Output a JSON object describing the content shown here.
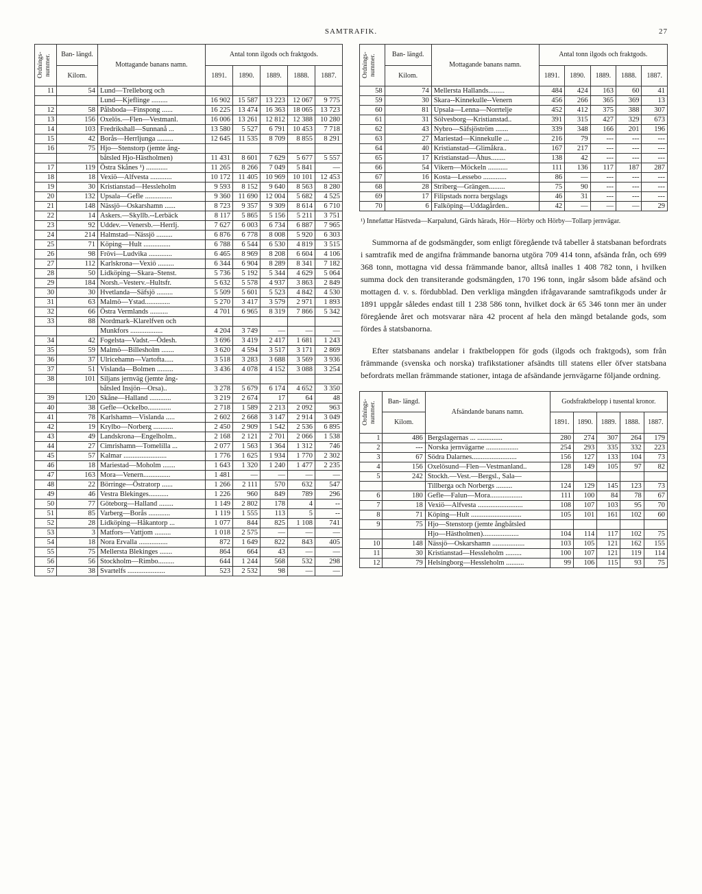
{
  "header": {
    "title": "SAMTRAFIK.",
    "page": "27"
  },
  "table_a": {
    "head": {
      "ord": "Ordnings-\nnummer.",
      "ban": "Ban-\nlängd.",
      "kilom": "Kilom.",
      "namn": "Mottagande banans namn.",
      "antal": "Antal tonn ilgods och fraktgods.",
      "years": [
        "1891.",
        "1890.",
        "1889.",
        "1888.",
        "1887."
      ]
    },
    "rows": [
      [
        "11",
        "54",
        "Lund—Trelleborg och",
        "",
        "",
        "",
        "",
        ""
      ],
      [
        "",
        "",
        "Lund—Kjeflinge .........",
        "16 902",
        "15 587",
        "13 223",
        "12 067",
        "9 775"
      ],
      [
        "12",
        "58",
        "Pålsboda—Finspong ......",
        "16 225",
        "13 474",
        "16 363",
        "18 065",
        "13 723"
      ],
      [
        "13",
        "156",
        "Oxelös.—Flen—Vestmanl.",
        "16 006",
        "13 261",
        "12 812",
        "12 388",
        "10 280"
      ],
      [
        "14",
        "103",
        "Fredrikshall—Sunnanå ...",
        "13 580",
        "5 527",
        "6 791",
        "10 453",
        "7 718"
      ],
      [
        "15",
        "42",
        "Borås—Herrljunga .........",
        "12 645",
        "11 535",
        "8 709",
        "8 855",
        "8 291"
      ],
      [
        "16",
        "75",
        "Hjo—Stenstorp (jemte ång-",
        "",
        "",
        "",
        "",
        ""
      ],
      [
        "",
        "",
        "båtsled Hjo-Hästholmen)",
        "11 431",
        "8 601",
        "7 629",
        "5 677",
        "5 557"
      ],
      [
        "17",
        "119",
        "Östra Skånes ¹) ............",
        "11 265",
        "8 266",
        "7 049",
        "5 841",
        "—"
      ],
      [
        "18",
        "18",
        "Vexiö—Alfvesta ............",
        "10 172",
        "11 405",
        "10 969",
        "10 101",
        "12 453"
      ],
      [
        "19",
        "30",
        "Kristianstad—Hessleholm",
        "9 593",
        "8 152",
        "9 640",
        "8 563",
        "8 280"
      ],
      [
        "20",
        "132",
        "Upsala—Gefle ...............",
        "9 360",
        "11 690",
        "12 004",
        "5 682",
        "4 525"
      ],
      [
        "21",
        "148",
        "Nässjö—Oskarshamn ......",
        "8 723",
        "9 357",
        "9 309",
        "8 614",
        "6 710"
      ],
      [
        "22",
        "14",
        "Askers.—Skyllb.--Lerbäck",
        "8 117",
        "5 865",
        "5 156",
        "5 211",
        "3 751"
      ],
      [
        "23",
        "92",
        "Uddev.—Venersb.—Herrlj.",
        "7 627",
        "6 003",
        "6 734",
        "6 887",
        "7 965"
      ],
      [
        "24",
        "214",
        "Halmstad—Nässjö .........",
        "6 876",
        "6 778",
        "8 008",
        "5 920",
        "6 303"
      ],
      [
        "25",
        "71",
        "Köping—Hult ...............",
        "6 788",
        "6 544",
        "6 530",
        "4 819",
        "3 515"
      ],
      [
        "26",
        "98",
        "Frövi—Ludvika .............",
        "6 465",
        "8 969",
        "8 208",
        "6 604",
        "4 106"
      ],
      [
        "27",
        "112",
        "Karlskrona—Vexiö .........",
        "6 344",
        "6 904",
        "8 289",
        "8 341",
        "7 182"
      ],
      [
        "28",
        "50",
        "Lidköping—Skara–Stenst.",
        "5 736",
        "5 192",
        "5 344",
        "4 629",
        "5 064"
      ],
      [
        "29",
        "184",
        "Norsh.–Vesterv.–Hultsfr.",
        "5 632",
        "5 578",
        "4 937",
        "3 863",
        "2 849"
      ],
      [
        "30",
        "30",
        "Hvetlanda—Säfsjö .........",
        "5 509",
        "5 601",
        "5 523",
        "4 842",
        "4 530"
      ],
      [
        "31",
        "63",
        "Malmö—Ystad..............",
        "5 270",
        "3 417",
        "3 579",
        "2 971",
        "1 893"
      ],
      [
        "32",
        "66",
        "Östra Vermlands ..........",
        "4 701",
        "6 965",
        "8 319",
        "7 866",
        "5 342"
      ],
      [
        "33",
        "88",
        "Nordmark–Klarelfven och",
        "",
        "",
        "",
        "",
        ""
      ],
      [
        "",
        "",
        "Munkfors ..................",
        "4 204",
        "3 749",
        "—",
        "—",
        "—"
      ],
      [
        "34",
        "42",
        "Fogelsta—Vadst.—Ödesh.",
        "3 696",
        "3 419",
        "2 417",
        "1 681",
        "1 243"
      ],
      [
        "35",
        "59",
        "Malmö—Billesholm .......",
        "3 620",
        "4 594",
        "3 517",
        "3 171",
        "2 869"
      ],
      [
        "36",
        "37",
        "Ulricehamn—Vartofta.....",
        "3 518",
        "3 283",
        "3 688",
        "3 569",
        "3 936"
      ],
      [
        "37",
        "51",
        "Vislanda—Bolmen .........",
        "3 436",
        "4 078",
        "4 152",
        "3 088",
        "3 254"
      ],
      [
        "38",
        "101",
        "Siljans jernväg (jemte ång-",
        "",
        "",
        "",
        "",
        ""
      ],
      [
        "",
        "",
        "båtsled Insjön—Orsa)..",
        "3 278",
        "5 679",
        "6 174",
        "4 652",
        "3 350"
      ],
      [
        "39",
        "120",
        "Skåne—Halland ............",
        "3 219",
        "2 674",
        "17",
        "64",
        "48"
      ],
      [
        "40",
        "38",
        "Gefle—Ockelbo.............",
        "2 718",
        "1 589",
        "2 213",
        "2 092",
        "963"
      ],
      [
        "41",
        "78",
        "Karlshamn—Vislanda .....",
        "2 602",
        "2 668",
        "3 147",
        "2 914",
        "3 049"
      ],
      [
        "42",
        "19",
        "Krylbo—Norberg ...........",
        "2 450",
        "2 909",
        "1 542",
        "2 536",
        "6 895"
      ],
      [
        "43",
        "49",
        "Landskrona—Engelholm..",
        "2 168",
        "2 121",
        "2 701",
        "2 066",
        "1 538"
      ],
      [
        "44",
        "27",
        "Cimrishamn—Tomelilla ...",
        "2 077",
        "1 563",
        "1 364",
        "1 312",
        "746"
      ],
      [
        "45",
        "57",
        "Kalmar ........................",
        "1 776",
        "1 625",
        "1 934",
        "1 770",
        "2 302"
      ],
      [
        "46",
        "18",
        "Mariestad—Moholm .......",
        "1 643",
        "1 320",
        "1 240",
        "1 477",
        "2 235"
      ],
      [
        "47",
        "163",
        "Mora—Venern...............",
        "1 481",
        "—",
        "—",
        "—",
        "—"
      ],
      [
        "48",
        "22",
        "Börringe—Östratorp ......",
        "1 266",
        "2 111",
        "570",
        "632",
        "547"
      ],
      [
        "49",
        "46",
        "Vestra Blekinges...........",
        "1 226",
        "960",
        "849",
        "789",
        "296"
      ],
      [
        "50",
        "77",
        "Göteborg—Halland ........",
        "1 149",
        "2 802",
        "178",
        "4",
        "--"
      ],
      [
        "51",
        "85",
        "Varberg—Borås ............",
        "1 119",
        "1 555",
        "113",
        "5",
        "--"
      ],
      [
        "52",
        "28",
        "Lidköping—Håkantorp ...",
        "1 077",
        "844",
        "825",
        "1 108",
        "741"
      ],
      [
        "53",
        "3",
        "Matfors—Vattjom .........",
        "1 018",
        "2 575",
        "—",
        "—",
        "—"
      ],
      [
        "54",
        "18",
        "Nora Ervalla ................",
        "872",
        "1 649",
        "822",
        "843",
        "405"
      ],
      [
        "55",
        "75",
        "Mellersta Blekinges .......",
        "864",
        "664",
        "43",
        "—",
        "—"
      ],
      [
        "56",
        "56",
        "Stockholm—Rimbo.........",
        "644",
        "1 244",
        "568",
        "532",
        "298"
      ],
      [
        "57",
        "38",
        "Svartelfs .....................",
        "523",
        "2 532",
        "98",
        "—",
        "—"
      ]
    ]
  },
  "table_b": {
    "head": {
      "ord": "Ordnings-\nnummer.",
      "ban": "Ban-\nlängd.",
      "kilom": "Kilom.",
      "namn": "Mottagande banans namn.",
      "antal": "Antal tonn ilgods och fraktgods.",
      "years": [
        "1891.",
        "1890.",
        "1889.",
        "1888.",
        "1887."
      ]
    },
    "rows": [
      [
        "58",
        "74",
        "Mellersta Hallands.........",
        "484",
        "424",
        "163",
        "60",
        "41"
      ],
      [
        "59",
        "30",
        "Skara--Kinnekulle--Venern",
        "456",
        "266",
        "365",
        "369",
        "13"
      ],
      [
        "60",
        "81",
        "Upsala—Lenna—Norrtelje",
        "452",
        "412",
        "375",
        "388",
        "307"
      ],
      [
        "61",
        "31",
        "Sölvesborg—Kristianstad..",
        "391",
        "315",
        "427",
        "329",
        "673"
      ],
      [
        "62",
        "43",
        "Nybro—Säfsjöström .......",
        "339",
        "348",
        "166",
        "201",
        "196"
      ],
      [
        "63",
        "27",
        "Mariestad—Kinnekulle ...",
        "216",
        "79",
        "---",
        "---",
        "---"
      ],
      [
        "64",
        "40",
        "Kristianstad—Glimåkra..",
        "167",
        "217",
        "---",
        "---",
        "---"
      ],
      [
        "65",
        "17",
        "Kristianstad—Åhus........",
        "138",
        "42",
        "---",
        "---",
        "---"
      ],
      [
        "66",
        "54",
        "Vikern—Möckeln ...........",
        "111",
        "136",
        "117",
        "187",
        "287"
      ],
      [
        "67",
        "16",
        "Kosta—Lessebo .............",
        "86",
        "—",
        "---",
        "---",
        "---"
      ],
      [
        "68",
        "28",
        "Striberg—Grängen.........",
        "75",
        "90",
        "---",
        "---",
        "---"
      ],
      [
        "69",
        "17",
        "Filipstads norra bergslags",
        "46",
        "31",
        "---",
        "---",
        "---"
      ],
      [
        "70",
        "6",
        "Falköping—Uddagården..",
        "42",
        "—",
        "—",
        "—",
        "29"
      ]
    ]
  },
  "footnote": "¹) Innefattar Hästveda—Karpalund, Gärds härads, Hör—Hörby och Hörby—Tollarp jernvägar.",
  "para1": "Summorna af de godsmängder, som enligt föregående två tabeller å statsbanan befordrats i samtrafik med de angifna främmande banorna utgöra 709 414 tonn, afsända från, och 699 368 tonn, mottagna vid dessa främmande banor, alltså inalles 1 408 782 tonn, i hvilken summa dock den transiterande godsmängden, 170 196 tonn, ingår såsom både afsänd och mottagen d. v. s. fördubblad. Den verkliga mängden ifrågavarande samtrafikgods under år 1891 uppgår således endast till 1 238 586 tonn, hvilket dock är 65 346 tonn mer än under föregående året och motsvarar nära 42 procent af hela den mängd betalande gods, som fördes å statsbanorna.",
  "para2": "Efter statsbanans andelar i fraktbeloppen för gods (ilgods och fraktgods), som från främmande (svenska och norska) trafikstationer afsändts till statens eller öfver statsbana befordrats mellan främmande stationer, intaga de afsändande jernvägarne följande ordning.",
  "table_c": {
    "head": {
      "ord": "Ordnings-\nnummer.",
      "ban": "Ban-\nlängd.",
      "kilom": "Kilom.",
      "namn": "Afsändande banans namn.",
      "belopp": "Godsfraktbelopp\ni tusental kronor.",
      "years": [
        "1891.",
        "1890.",
        "1889.",
        "1888.",
        "1887."
      ]
    },
    "rows": [
      [
        "1",
        "486",
        "Bergslagernas ... ..............",
        "280",
        "274",
        "307",
        "264",
        "179"
      ],
      [
        "2",
        "---",
        "Norska jernvägarne ..................",
        "254",
        "293",
        "335",
        "332",
        "223"
      ],
      [
        "3",
        "67",
        "Södra Dalarnes.........................",
        "156",
        "127",
        "133",
        "104",
        "73"
      ],
      [
        "4",
        "156",
        "Oxelösund—Flen—Vestmanland..",
        "128",
        "149",
        "105",
        "97",
        "82"
      ],
      [
        "5",
        "242",
        "Stockh.—Vest.—Bergsl., Sala—",
        "",
        "",
        "",
        "",
        ""
      ],
      [
        "",
        "",
        "Tillberga och Norbergs .........",
        "124",
        "129",
        "145",
        "123",
        "73"
      ],
      [
        "6",
        "180",
        "Gefle—Falun—Mora..................",
        "111",
        "100",
        "84",
        "78",
        "67"
      ],
      [
        "7",
        "18",
        "Vexiö—Alfvesta .........................",
        "108",
        "107",
        "103",
        "95",
        "70"
      ],
      [
        "8",
        "71",
        "Köping—Hult ............................",
        "105",
        "101",
        "161",
        "102",
        "60"
      ],
      [
        "9",
        "75",
        "Hjo—Stenstorp (jemte ångbåtsled",
        "",
        "",
        "",
        "",
        ""
      ],
      [
        "",
        "",
        "Hjo—Hästholmen)....................",
        "104",
        "114",
        "117",
        "102",
        "75"
      ],
      [
        "10",
        "148",
        "Nässjö—Oskarshamn ..................",
        "103",
        "105",
        "121",
        "162",
        "155"
      ],
      [
        "11",
        "30",
        "Kristianstad—Hessleholm .........",
        "100",
        "107",
        "121",
        "119",
        "114"
      ],
      [
        "12",
        "79",
        "Helsingborg—Hessleholm ..........",
        "99",
        "106",
        "115",
        "93",
        "75"
      ]
    ]
  }
}
